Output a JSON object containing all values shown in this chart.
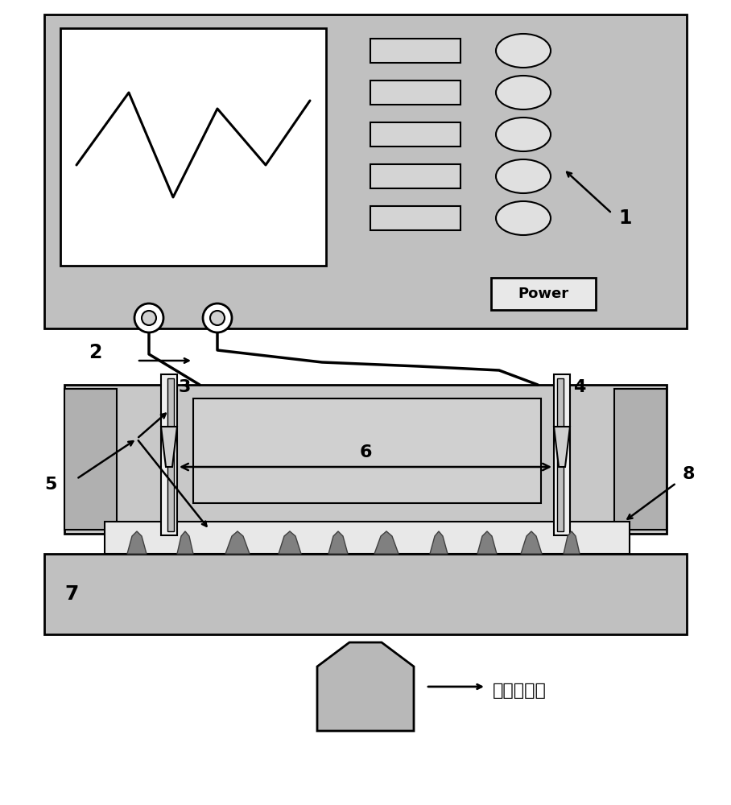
{
  "bg_color": "#ffffff",
  "device_color": "#c0c0c0",
  "screen_bg": "#ffffff",
  "button_fill": "#d4d4d4",
  "oval_fill": "#e0e0e0",
  "chip_body": "#c8c8c8",
  "chip_inner": "#d0d0d0",
  "electrode_white": "#f0f0f0",
  "electrode_dark": "#909090",
  "slide_color": "#c0c0c0",
  "cell_layer": "#e8e8e8",
  "cell_fill": "#808080",
  "microscope_fill": "#b8b8b8",
  "wire_color": "#000000",
  "label_1": "1",
  "label_2": "2",
  "label_3": "3",
  "label_4": "4",
  "label_5": "5",
  "label_6": "6",
  "label_7": "7",
  "label_8": "8",
  "label_micro": "倒置显微镜",
  "power_text": "Power"
}
